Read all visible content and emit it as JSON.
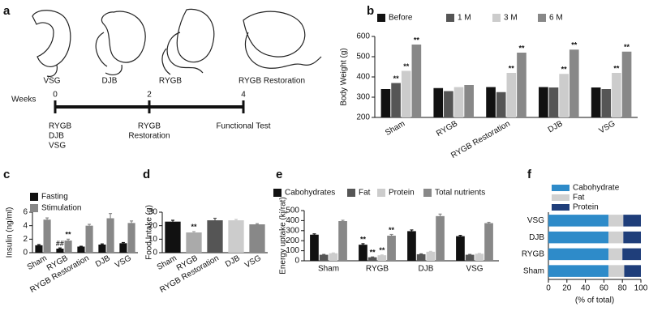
{
  "panel_a": {
    "panel_label": "a",
    "procedures": [
      "VSG",
      "DJB",
      "RYGB",
      "RYGB Restoration"
    ],
    "timeline": {
      "label": "Weeks",
      "ticks": [
        0,
        2,
        4
      ],
      "events": [
        [
          "RYGB",
          "DJB",
          "VSG"
        ],
        [
          "RYGB",
          "Restoration"
        ],
        [
          "Functional Test"
        ]
      ]
    }
  },
  "chart_data": [
    {
      "panel_label": "b",
      "type": "bar",
      "ylabel": "Body Weight (g)",
      "categories": [
        "Sham",
        "RYGB",
        "RYGB Restoration",
        "DJB",
        "VSG"
      ],
      "series": [
        {
          "name": "Before",
          "color": "#111111",
          "values": [
            340,
            345,
            350,
            350,
            348
          ],
          "marks": [
            null,
            null,
            null,
            null,
            null
          ]
        },
        {
          "name": "1 M",
          "color": "#555555",
          "values": [
            370,
            330,
            325,
            348,
            340
          ],
          "marks": [
            "**",
            null,
            null,
            null,
            null
          ]
        },
        {
          "name": "3 M",
          "color": "#cccccc",
          "values": [
            430,
            350,
            420,
            415,
            420
          ],
          "marks": [
            "**",
            null,
            "**",
            "**",
            "**"
          ]
        },
        {
          "name": "6 M",
          "color": "#888888",
          "values": [
            560,
            360,
            520,
            535,
            525
          ],
          "marks": [
            "**",
            null,
            "**",
            "**",
            "**"
          ]
        }
      ],
      "ylim": [
        200,
        600
      ],
      "yticks": [
        200,
        300,
        400,
        500,
        600
      ]
    },
    {
      "panel_label": "c",
      "type": "bar",
      "ylabel": "Insulin (ng/ml)",
      "categories": [
        "Sham",
        "RYGB",
        "RYGB Restoration",
        "DJB",
        "VSG"
      ],
      "series": [
        {
          "name": "Fasting",
          "color": "#111111",
          "values": [
            1.1,
            0.6,
            0.9,
            1.2,
            1.4
          ],
          "errors": [
            0.1,
            0.1,
            0.05,
            0.1,
            0.1
          ],
          "marks": [
            null,
            "##",
            null,
            null,
            null
          ]
        },
        {
          "name": "Stimulation",
          "color": "#888888",
          "values": [
            4.9,
            1.8,
            4.0,
            5.1,
            4.4
          ],
          "errors": [
            0.25,
            0.2,
            0.2,
            0.7,
            0.3
          ],
          "marks": [
            null,
            "**",
            null,
            null,
            null
          ]
        }
      ],
      "ylim": [
        0,
        6
      ],
      "yticks": [
        0,
        2,
        4,
        6
      ]
    },
    {
      "panel_label": "d",
      "type": "bar",
      "ylabel": "Food Intake (g)",
      "categories": [
        "Sham",
        "RYGB",
        "RYGB Restoration",
        "DJB",
        "VSG"
      ],
      "values": [
        23,
        15,
        24,
        24,
        21
      ],
      "errors": [
        1,
        0.7,
        1.5,
        0.7,
        0.5
      ],
      "marks": [
        null,
        "**",
        null,
        null,
        null
      ],
      "colors": [
        "#111111",
        "#aaaaaa",
        "#555555",
        "#cccccc",
        "#888888"
      ],
      "ylim": [
        0,
        30
      ],
      "yticks": [
        0,
        10,
        20,
        30
      ]
    },
    {
      "panel_label": "e",
      "type": "bar",
      "ylabel": "Energy uptake (kj/rat)",
      "categories": [
        "Sham",
        "RYGB",
        "DJB",
        "VSG"
      ],
      "series": [
        {
          "name": "Cabohydrates",
          "color": "#111111",
          "values": [
            260,
            160,
            295,
            245
          ],
          "errors": [
            8,
            10,
            12,
            8
          ],
          "marks": [
            null,
            "**",
            null,
            null
          ]
        },
        {
          "name": "Fat",
          "color": "#555555",
          "values": [
            60,
            35,
            65,
            60
          ],
          "errors": [
            3,
            3,
            4,
            3
          ],
          "marks": [
            null,
            "**",
            null,
            null
          ]
        },
        {
          "name": "Protein",
          "color": "#cccccc",
          "values": [
            75,
            55,
            90,
            70
          ],
          "errors": [
            3,
            3,
            4,
            3
          ],
          "marks": [
            null,
            "**",
            null,
            null
          ]
        },
        {
          "name": "Total nutrients",
          "color": "#888888",
          "values": [
            395,
            250,
            445,
            375
          ],
          "errors": [
            8,
            12,
            20,
            8
          ],
          "marks": [
            null,
            "**",
            null,
            null
          ]
        }
      ],
      "ylim": [
        0,
        500
      ],
      "yticks": [
        0,
        100,
        200,
        300,
        400,
        500
      ]
    },
    {
      "panel_label": "f",
      "type": "stacked_hbar",
      "xlabel": "(% of total)",
      "categories": [
        "Sham",
        "RYGB",
        "DJB",
        "VSG"
      ],
      "series": [
        {
          "name": "Cabohydrate",
          "color": "#2e8bc9",
          "values": [
            65,
            65,
            65,
            65
          ]
        },
        {
          "name": "Fat",
          "color": "#d0d0d0",
          "values": [
            17,
            15,
            16,
            16
          ]
        },
        {
          "name": "Protein",
          "color": "#1f3e7a",
          "values": [
            18,
            20,
            19,
            19
          ]
        }
      ],
      "xlim": [
        0,
        100
      ],
      "xticks": [
        0,
        20,
        40,
        60,
        80,
        100
      ]
    }
  ]
}
